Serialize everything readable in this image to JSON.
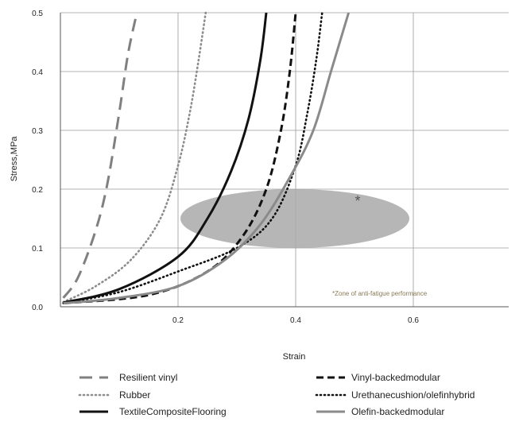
{
  "chart_data": {
    "type": "line",
    "xlabel": "Strain",
    "ylabel": "Stress,MPa",
    "xlim": [
      0,
      0.75
    ],
    "ylim": [
      0,
      0.5
    ],
    "x_ticks": [
      "0.2",
      "0.4",
      "0.6"
    ],
    "y_ticks": [
      "0.0",
      "0.1",
      "0.2",
      "0.3",
      "0.4",
      "0.5"
    ],
    "grid": true,
    "series": [
      {
        "name": "Resilient vinyl",
        "style": "long-dash",
        "color": "#808080",
        "x": [
          0.005,
          0.03,
          0.06,
          0.08,
          0.1,
          0.115,
          0.13
        ],
        "y": [
          0.015,
          0.05,
          0.13,
          0.21,
          0.33,
          0.43,
          0.5
        ]
      },
      {
        "name": "Rubber",
        "style": "dotted",
        "color": "#8c8c8c",
        "x": [
          0.005,
          0.06,
          0.12,
          0.17,
          0.2,
          0.22,
          0.235,
          0.247
        ],
        "y": [
          0.008,
          0.035,
          0.08,
          0.15,
          0.24,
          0.33,
          0.42,
          0.5
        ]
      },
      {
        "name": "TextileCompositeFlooring",
        "style": "solid",
        "color": "#111111",
        "x": [
          0.005,
          0.1,
          0.2,
          0.25,
          0.29,
          0.32,
          0.34,
          0.35
        ],
        "y": [
          0.007,
          0.03,
          0.085,
          0.15,
          0.23,
          0.32,
          0.42,
          0.5
        ]
      },
      {
        "name": "Vinyl-backedmodular",
        "style": "dash",
        "color": "#111111",
        "x": [
          0.005,
          0.15,
          0.25,
          0.31,
          0.35,
          0.375,
          0.39,
          0.4
        ],
        "y": [
          0.006,
          0.02,
          0.06,
          0.12,
          0.2,
          0.3,
          0.4,
          0.5
        ]
      },
      {
        "name": "Urethanecushion/olefinhybrid",
        "style": "dotted",
        "color": "#111111",
        "x": [
          0.005,
          0.1,
          0.2,
          0.3,
          0.36,
          0.4,
          0.42,
          0.435,
          0.445
        ],
        "y": [
          0.006,
          0.025,
          0.06,
          0.1,
          0.15,
          0.24,
          0.33,
          0.42,
          0.5
        ]
      },
      {
        "name": "Olefin-backedmodular",
        "style": "solid",
        "color": "#8a8a8a",
        "x": [
          0.005,
          0.1,
          0.2,
          0.28,
          0.34,
          0.39,
          0.43,
          0.46,
          0.49
        ],
        "y": [
          0.006,
          0.015,
          0.035,
          0.08,
          0.14,
          0.22,
          0.3,
          0.4,
          0.5
        ]
      }
    ],
    "zone": {
      "label": "Zone of anti-fatigue performance",
      "marker": "*",
      "x_center": 0.4,
      "y_center": 0.15,
      "x_radius": 0.2,
      "y_radius": 0.05,
      "color": "#a9a9a9"
    },
    "legend": {
      "placement": "bottom",
      "columns": 2
    }
  }
}
